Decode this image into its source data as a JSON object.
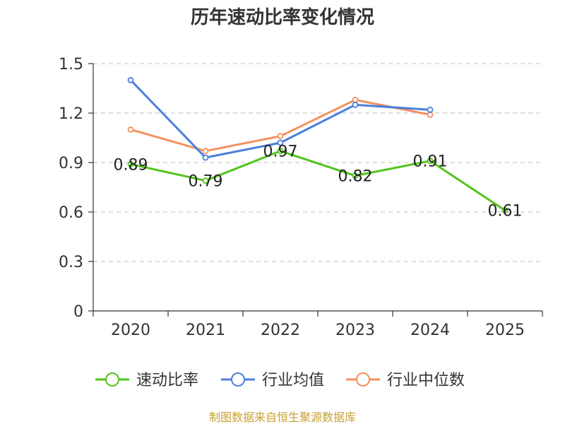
{
  "chart_data": {
    "type": "line",
    "title": "历年速动比率变化情况",
    "categories": [
      "2020",
      "2021",
      "2022",
      "2023",
      "2024",
      "2025"
    ],
    "y_ticks": [
      "0",
      "0.3",
      "0.6",
      "0.9",
      "1.2",
      "1.5"
    ],
    "ylim": [
      0,
      1.5
    ],
    "grid": true,
    "legend_position": "bottom",
    "series": [
      {
        "name": "速动比率",
        "color": "#52c41a",
        "values": [
          0.89,
          0.79,
          0.97,
          0.82,
          0.91,
          0.61
        ],
        "labels": [
          "0.89",
          "0.79",
          "0.97",
          "0.82",
          "0.91",
          "0.61"
        ],
        "show_labels": true
      },
      {
        "name": "行业均值",
        "color": "#4a7fdc",
        "values": [
          1.4,
          0.93,
          1.02,
          1.25,
          1.22,
          null
        ],
        "show_labels": false
      },
      {
        "name": "行业中位数",
        "color": "#f5905d",
        "values": [
          1.1,
          0.97,
          1.06,
          1.28,
          1.19,
          null
        ],
        "show_labels": false
      }
    ]
  },
  "source_text": "制图数据来自恒生聚源数据库",
  "source_color": "#c8a032"
}
